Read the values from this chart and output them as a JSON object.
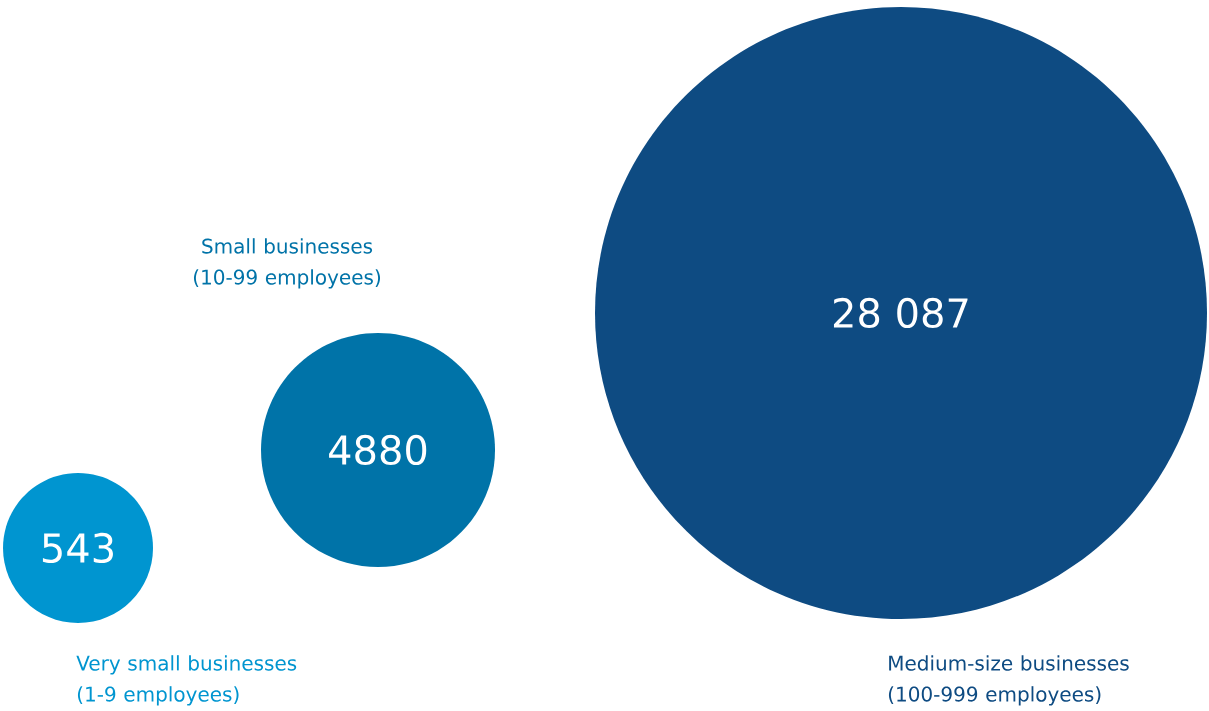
{
  "chart_data": {
    "type": "other",
    "categories": [
      "Very small businesses (1-9 employees)",
      "Small businesses (10-99 employees)",
      "Medium-size businesses (100-999 employees)"
    ],
    "values": [
      543,
      4880,
      28087
    ],
    "colors": [
      "#0095d0",
      "#0073a8",
      "#0e4b82"
    ],
    "data_labels": true
  }
}
